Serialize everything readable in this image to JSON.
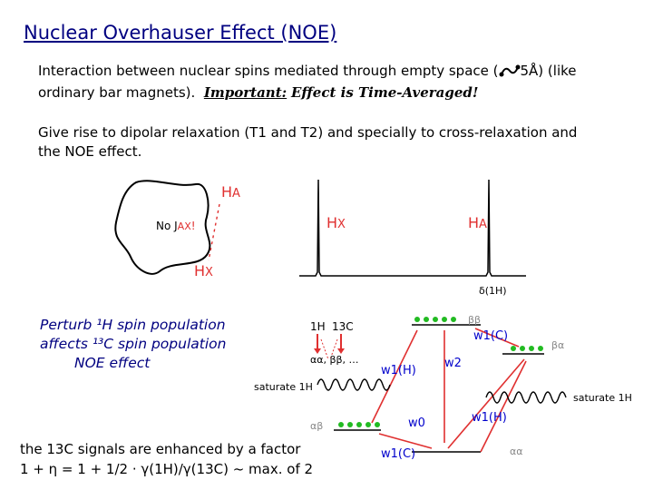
{
  "title": "Nuclear Overhauser Effect (NOE)",
  "para1": {
    "line1_pre": "Interaction between nuclear spins mediated through empty space (",
    "line1_post": "5Å) (like",
    "line2_pre": "ordinary bar magnets).",
    "important": "Important:",
    "important_rest": "Effect is Time-Averaged!"
  },
  "para2": {
    "line1": "Give rise to dipolar relaxation (T1 and T2) and specially to cross-relaxation and",
    "line2": "the NOE effect."
  },
  "molecule": {
    "ha_label": "H",
    "ha_sub": "A",
    "hx_label": "H",
    "hx_sub": "X",
    "no_j": "No J",
    "no_j_sub": "AX",
    "no_j_tail": "!"
  },
  "spectrum": {
    "hx_label": "H",
    "hx_sub": "X",
    "ha_label": "H",
    "ha_sub": "A",
    "axis_label": "δ(1H)"
  },
  "left_note": {
    "line1": "Perturb ¹H spin population",
    "line2": "affects ¹³C spin population",
    "line3": "NOE effect"
  },
  "energy_diagram": {
    "legend_h": "1H",
    "legend_c": "13C",
    "legend_states": "αα, ββ, …",
    "bb": "ββ",
    "ba": "βα",
    "ab": "αβ",
    "aa": "αα",
    "w1c_top": "w1(C)",
    "w1h_left": "w1(H)",
    "w2": "w2",
    "w0": "w0",
    "w1h_right": "w1(H)",
    "w1c_bottom": "w1(C)",
    "saturate_left": "saturate 1H",
    "saturate_right": "saturate 1H"
  },
  "bottom_note": {
    "line1": "the 13C signals are enhanced by a factor",
    "line2": "1 + η = 1 + 1/2 · γ(1H)/γ(13C) ~ max. of 2"
  },
  "colors": {
    "title": "#000080",
    "red": "#e03030",
    "green": "#22bb22",
    "blue": "#0000cc",
    "note": "#000080"
  }
}
